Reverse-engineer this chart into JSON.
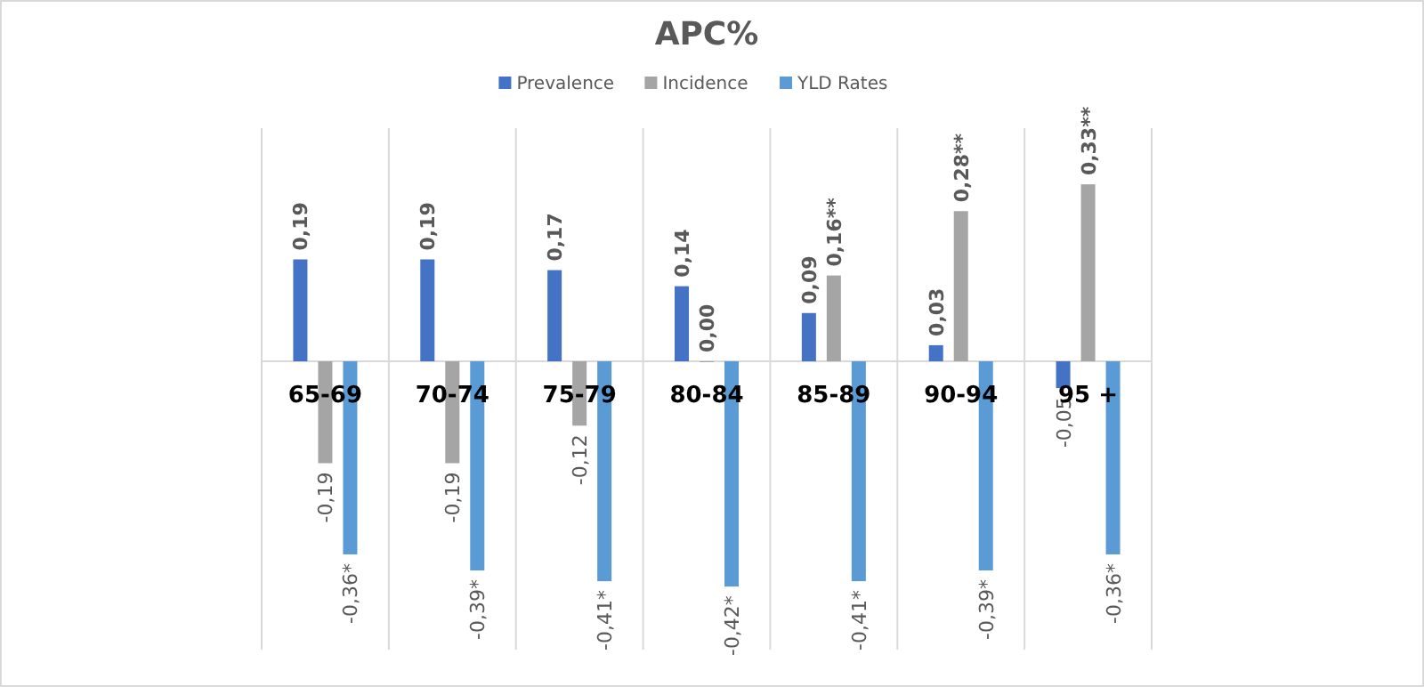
{
  "chart_data": {
    "type": "bar",
    "title": "APC%",
    "categories": [
      "65-69",
      "70-74",
      "75-79",
      "80-84",
      "85-89",
      "90-94",
      "95 +"
    ],
    "series": [
      {
        "name": "Prevalence",
        "color": "#4472c4",
        "values": [
          0.19,
          0.19,
          0.17,
          0.14,
          0.09,
          0.03,
          -0.05
        ],
        "value_labels": [
          "0,19",
          "0,19",
          "0,17",
          "0,14",
          "0,09",
          "0,03",
          "-0,05"
        ]
      },
      {
        "name": "Incidence",
        "color": "#a5a5a5",
        "values": [
          -0.19,
          -0.19,
          -0.12,
          0.0,
          0.16,
          0.28,
          0.33
        ],
        "value_labels": [
          "-0,19",
          "-0,19",
          "-0,12",
          "0,00",
          "0,16**",
          "0,28**",
          "0,33**"
        ]
      },
      {
        "name": "YLD Rates",
        "color": "#5b9bd5",
        "values": [
          -0.36,
          -0.39,
          -0.41,
          -0.42,
          -0.41,
          -0.39,
          -0.36
        ],
        "value_labels": [
          "-0,36*",
          "-0,39*",
          "-0,41*",
          "-0,42*",
          "-0,41*",
          "-0,39*",
          "-0,36*"
        ]
      }
    ],
    "grid": "x",
    "legend": "top"
  }
}
